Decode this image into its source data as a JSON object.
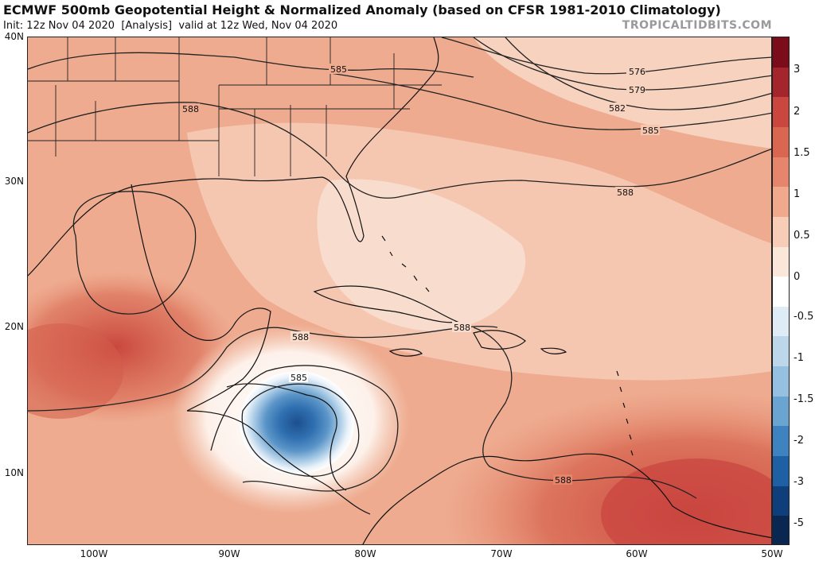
{
  "header": {
    "title": "ECMWF 500mb Geopotential Height & Normalized Anomaly (based on CFSR 1981-2010 Climatology)",
    "init": "Init: 12z Nov 04 2020",
    "run_type": "[Analysis]",
    "valid": "valid at 12z Wed, Nov 04 2020",
    "brand": "TROPICALTIDBITS.COM"
  },
  "axes": {
    "lat_labels": [
      "40N",
      "30N",
      "20N",
      "10N"
    ],
    "lon_labels": [
      "100W",
      "90W",
      "80W",
      "70W",
      "60W",
      "50W"
    ]
  },
  "contours": {
    "labels": [
      "585",
      "576",
      "579",
      "582",
      "585",
      "588",
      "588",
      "588",
      "588",
      "585",
      "588"
    ],
    "color": "#222222"
  },
  "colorbar": {
    "labels": [
      "3",
      "2",
      "1.5",
      "1",
      "0.5",
      "0",
      "-0.5",
      "-1",
      "-1.5",
      "-2",
      "-3",
      "-5"
    ],
    "colors": [
      "#7a0d19",
      "#a5252c",
      "#c9473e",
      "#d86650",
      "#e5856b",
      "#f0a98d",
      "#f7cdb7",
      "#fbe6da",
      "#ffffff",
      "#dfecf6",
      "#bcd7ea",
      "#95c0df",
      "#6aa4d0",
      "#3f82c0",
      "#1f5fa3",
      "#0f3f7b",
      "#0a2752"
    ]
  },
  "anomaly_fill": {
    "warm_background": "#eeab8f",
    "strong_warm": "#d8654f",
    "light_warm": "#f7d5c3",
    "cold_center": "#2f6fb0",
    "cold_ring": "#9cc4e2",
    "white_ring": "#ffffff"
  }
}
